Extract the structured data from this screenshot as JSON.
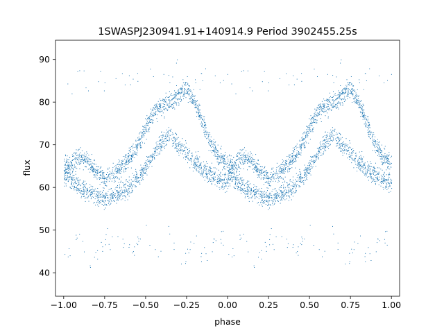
{
  "chart_data": {
    "type": "scatter",
    "title": "1SWASPJ230941.91+140914.9 Period 3902455.25s",
    "xlabel": "phase",
    "ylabel": "flux",
    "xlim": [
      -1.05,
      1.05
    ],
    "ylim": [
      34.5,
      94.5
    ],
    "xticks": [
      -1.0,
      -0.75,
      -0.5,
      -0.25,
      0.0,
      0.25,
      0.5,
      0.75,
      1.0
    ],
    "xtick_labels": [
      "−1.00",
      "−0.75",
      "−0.50",
      "−0.25",
      "0.00",
      "0.25",
      "0.50",
      "0.75",
      "1.00"
    ],
    "yticks": [
      40,
      50,
      60,
      70,
      80,
      90
    ],
    "ytick_labels": [
      "40",
      "50",
      "60",
      "70",
      "80",
      "90"
    ],
    "marker_color": "#1f77b4",
    "grid": false,
    "legend": "none",
    "series": [
      {
        "phase": [
          0.0,
          0.05,
          0.1,
          0.15,
          0.2,
          0.25,
          0.3,
          0.35,
          0.4,
          0.45,
          0.5,
          0.55,
          0.6,
          0.65,
          0.7,
          0.75,
          0.8,
          0.85,
          0.9,
          0.95,
          1.0
        ],
        "upper_flux": [
          65,
          66,
          67,
          66,
          64,
          62,
          63,
          65,
          67,
          70,
          74,
          78,
          79,
          80,
          82,
          83,
          80,
          75,
          70,
          67,
          66
        ],
        "lower_flux": [
          63,
          62,
          60,
          59,
          58,
          57,
          58,
          59,
          60,
          62,
          65,
          68,
          71,
          72,
          70,
          68,
          66,
          64,
          63,
          62,
          61
        ],
        "scatter_low": [
          45,
          47,
          50,
          42,
          44,
          48,
          46,
          50,
          45,
          47,
          52,
          44,
          46,
          50,
          43,
          45,
          48,
          44,
          46,
          49,
          45
        ],
        "scatter_high": [
          85,
          84,
          88,
          83,
          86,
          84,
          85,
          87,
          84,
          86,
          88,
          85,
          84,
          86,
          88,
          85,
          84,
          87,
          85,
          84,
          88
        ]
      }
    ]
  }
}
